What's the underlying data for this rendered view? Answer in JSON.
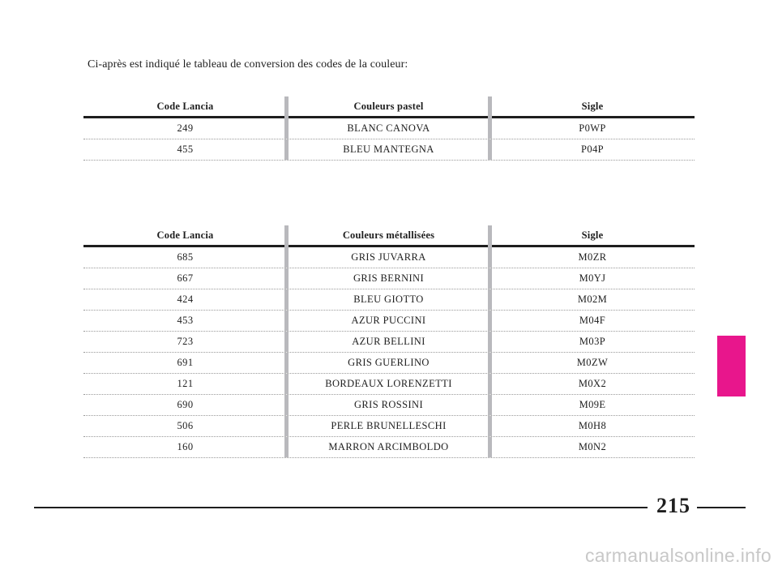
{
  "intro_text": "Ci-après est indiqué le tableau de conversion des codes de la couleur:",
  "pastel_table": {
    "headers": [
      "Code Lancia",
      "Couleurs pastel",
      "Sigle"
    ],
    "rows": [
      [
        "249",
        "BLANC CANOVA",
        "P0WP"
      ],
      [
        "455",
        "BLEU MANTEGNA",
        "P04P"
      ]
    ]
  },
  "metal_table": {
    "headers": [
      "Code Lancia",
      "Couleurs métallisées",
      "Sigle"
    ],
    "rows": [
      [
        "685",
        "GRIS JUVARRA",
        "M0ZR"
      ],
      [
        "667",
        "GRIS BERNINI",
        "M0YJ"
      ],
      [
        "424",
        "BLEU GIOTTO",
        "M02M"
      ],
      [
        "453",
        "AZUR PUCCINI",
        "M04F"
      ],
      [
        "723",
        "AZUR BELLINI",
        "M03P"
      ],
      [
        "691",
        "GRIS GUERLINO",
        "M0ZW"
      ],
      [
        "121",
        "BORDEAUX LORENZETTI",
        "M0X2"
      ],
      [
        "690",
        "GRIS ROSSINI",
        "M09E"
      ],
      [
        "506",
        "PERLE BRUNELLESCHI",
        "M0H8"
      ],
      [
        "160",
        "MARRON ARCIMBOLDO",
        "M0N2"
      ]
    ]
  },
  "page_number": "215",
  "watermark": "carmanualsonline.info",
  "colors": {
    "side_tab": "#e8168c",
    "column_divider": "#b9b9bd",
    "text": "#1e1e1e"
  }
}
